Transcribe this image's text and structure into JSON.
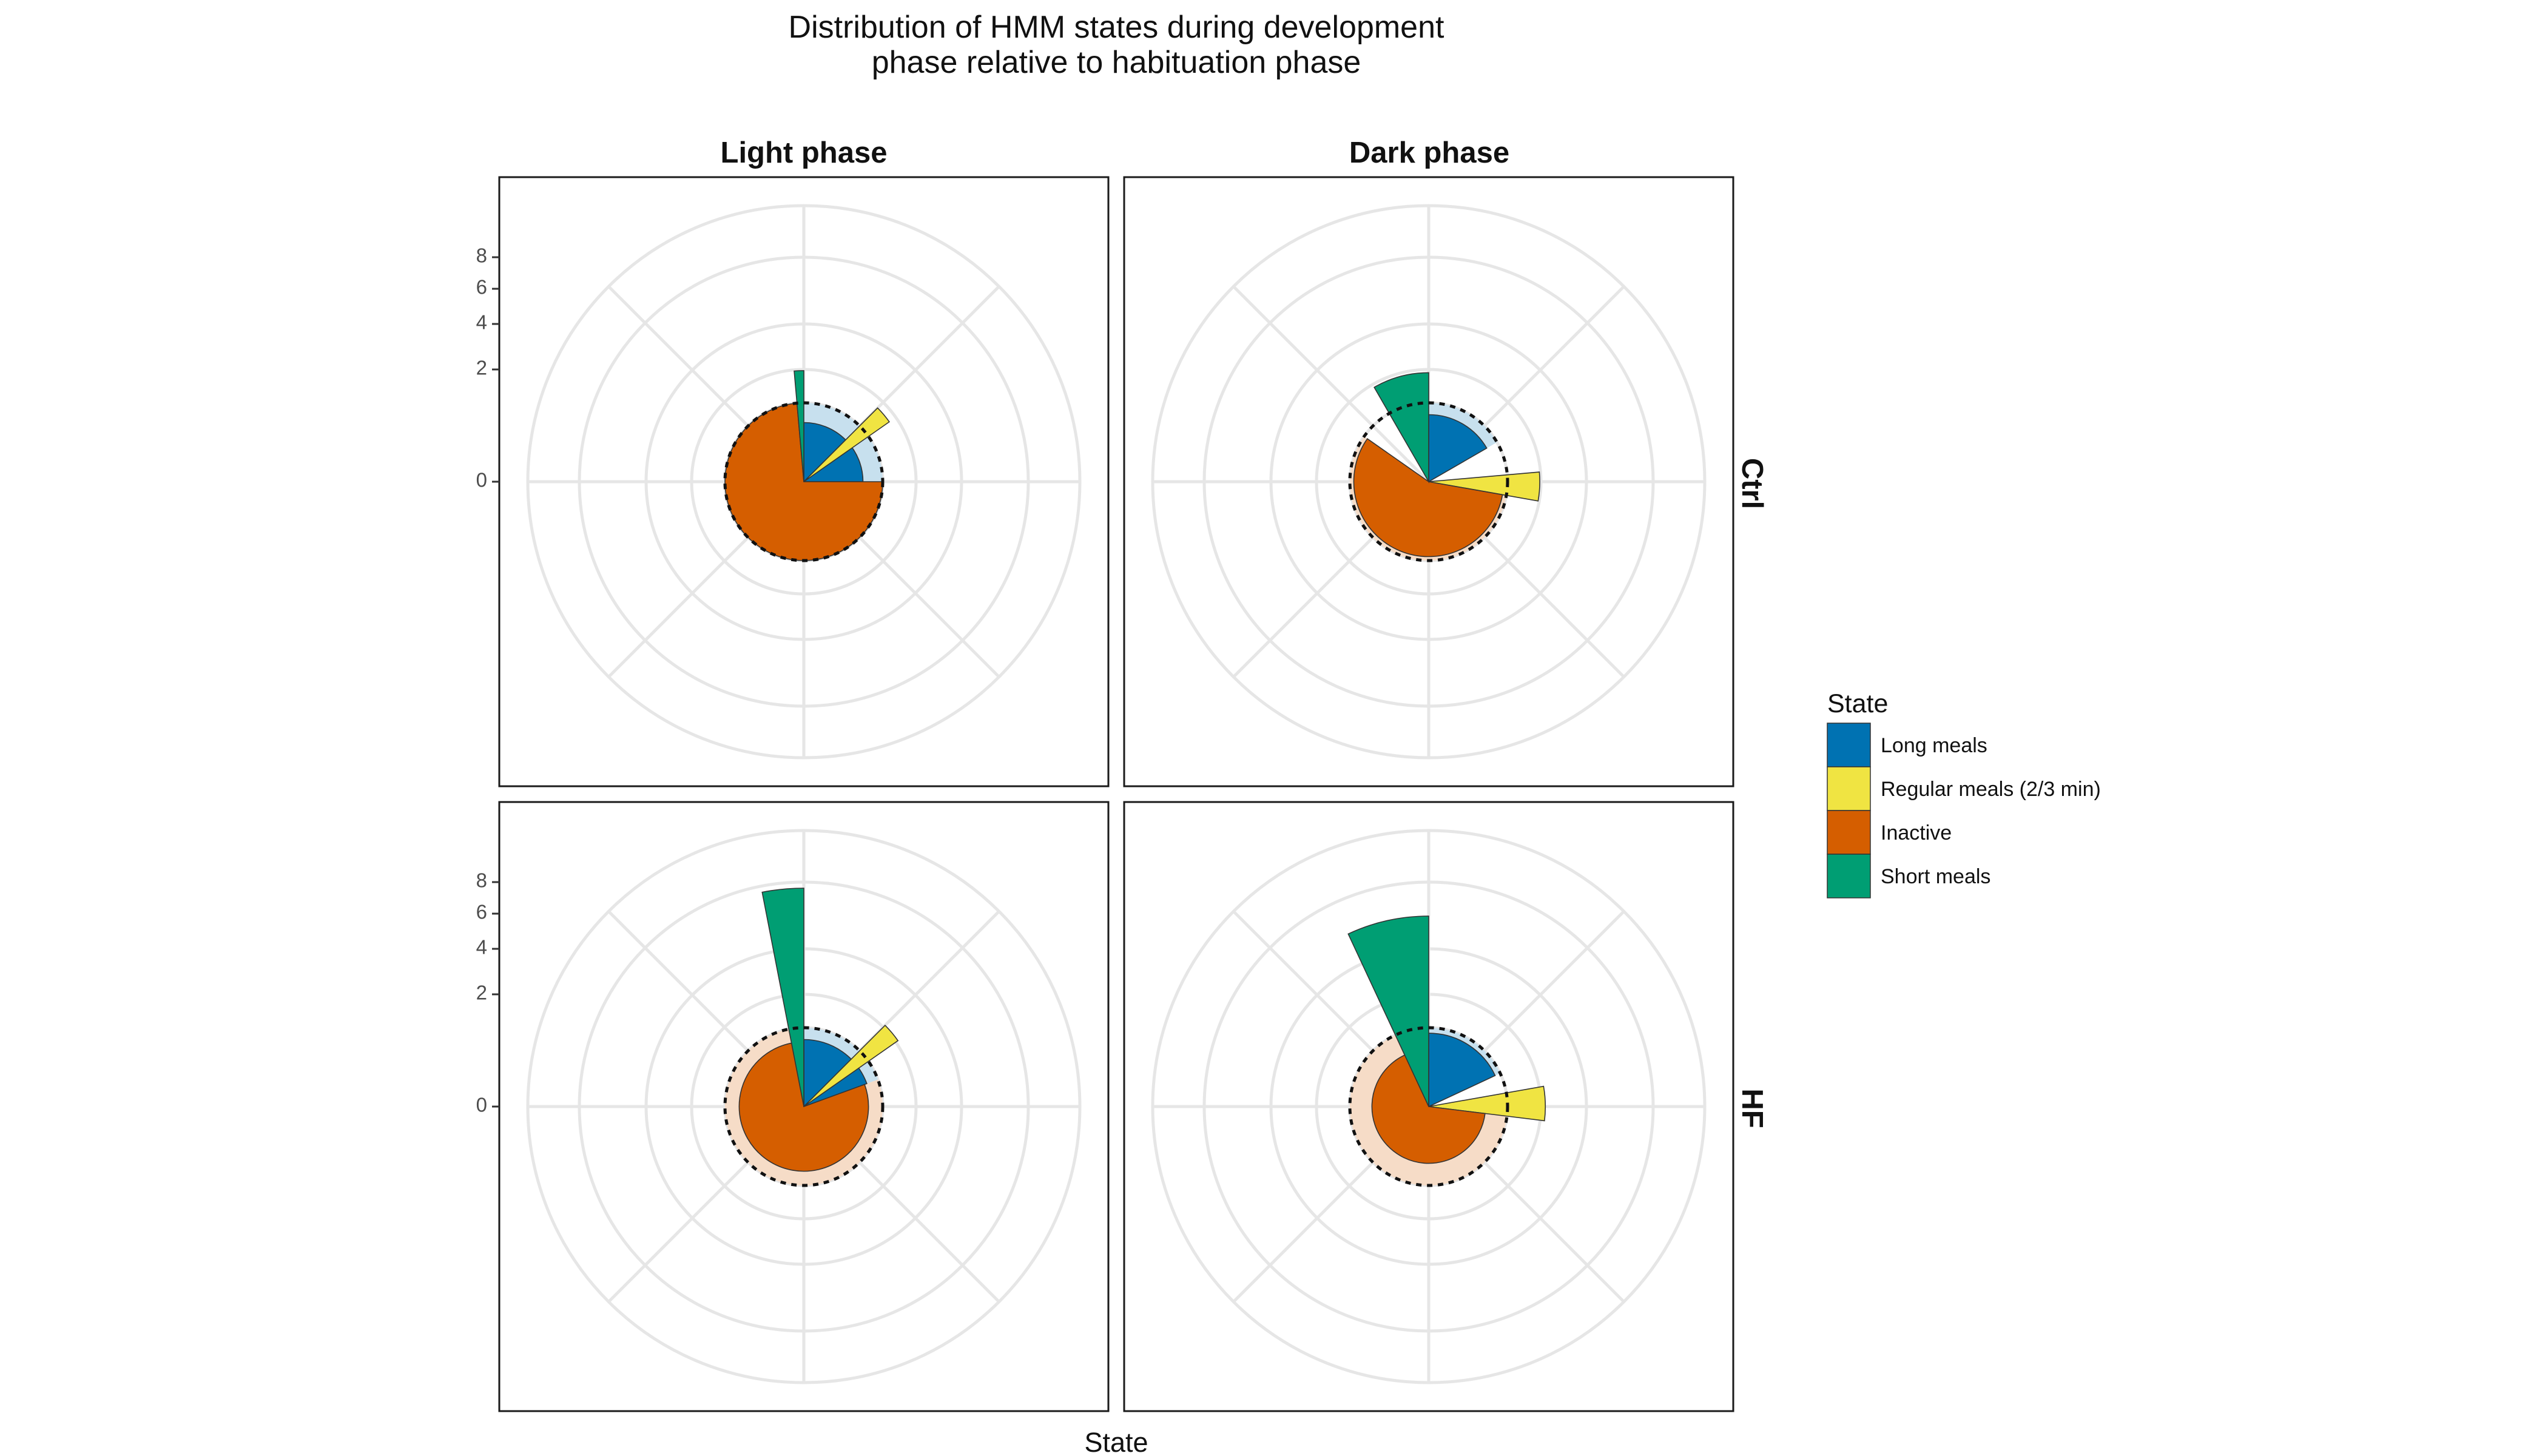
{
  "title_lines": [
    "Distribution of HMM states during development",
    "phase relative to habituation phase"
  ],
  "xlabel": "State",
  "columns": [
    "Light phase",
    "Dark phase"
  ],
  "rows": [
    "Ctrl",
    "HF"
  ],
  "legend": {
    "title": "State",
    "items": [
      {
        "label": "Long meals",
        "color": "#0072B2"
      },
      {
        "label": "Regular meals (2/3 min)",
        "color": "#F0E442"
      },
      {
        "label": "Inactive",
        "color": "#D55E00"
      },
      {
        "label": "Short meals",
        "color": "#009E73"
      }
    ]
  },
  "y_ticks": [
    "0",
    "2",
    "4",
    "6",
    "8"
  ],
  "chart_data": {
    "type": "polar-bar",
    "title": "Distribution of HMM states during development\nphase relative to habituation phase",
    "xlabel": "State",
    "facets": {
      "columns": [
        "Light phase",
        "Dark phase"
      ],
      "rows": [
        "Ctrl",
        "HF"
      ]
    },
    "y_ticks": [
      0,
      2,
      4,
      6,
      8
    ],
    "reference_ring": 1,
    "panels": [
      {
        "column": "Light phase",
        "row": "Ctrl",
        "states": [
          {
            "state": "Long meals",
            "start_deg": 0,
            "end_deg": 90,
            "value": 0.75,
            "reference": 1
          },
          {
            "state": "Regular meals (2/3 min)",
            "start_deg": 45,
            "end_deg": 55,
            "value": 1.25,
            "reference": 1
          },
          {
            "state": "Inactive",
            "start_deg": 90,
            "end_deg": 355,
            "value": 1.0,
            "reference": 1
          },
          {
            "state": "Short meals",
            "start_deg": 355,
            "end_deg": 360,
            "value": 1.4,
            "reference": 1
          }
        ]
      },
      {
        "column": "Dark phase",
        "row": "Ctrl",
        "states": [
          {
            "state": "Long meals",
            "start_deg": 0,
            "end_deg": 60,
            "value": 0.85,
            "reference": 1
          },
          {
            "state": "Regular meals (2/3 min)",
            "start_deg": 85,
            "end_deg": 100,
            "value": 1.4,
            "reference": 1
          },
          {
            "state": "Inactive",
            "start_deg": 100,
            "end_deg": 305,
            "value": 0.95,
            "reference": 1
          },
          {
            "state": "Short meals",
            "start_deg": 330,
            "end_deg": 360,
            "value": 1.35,
            "reference": 1
          }
        ]
      },
      {
        "column": "Light phase",
        "row": "HF",
        "states": [
          {
            "state": "Long meals",
            "start_deg": 0,
            "end_deg": 70,
            "value": 0.85,
            "reference": 1
          },
          {
            "state": "Regular meals (2/3 min)",
            "start_deg": 45,
            "end_deg": 55,
            "value": 1.5,
            "reference": 1
          },
          {
            "state": "Inactive",
            "start_deg": 70,
            "end_deg": 360,
            "value": 0.82,
            "reference": 1
          },
          {
            "state": "Short meals",
            "start_deg": 349,
            "end_deg": 360,
            "value": 8.5,
            "reference": 1
          }
        ]
      },
      {
        "column": "Dark phase",
        "row": "HF",
        "states": [
          {
            "state": "Long meals",
            "start_deg": 0,
            "end_deg": 65,
            "value": 0.93,
            "reference": 1
          },
          {
            "state": "Regular meals (2/3 min)",
            "start_deg": 80,
            "end_deg": 97,
            "value": 1.55,
            "reference": 1
          },
          {
            "state": "Inactive",
            "start_deg": 97,
            "end_deg": 360,
            "value": 0.72,
            "reference": 1
          },
          {
            "state": "Short meals",
            "start_deg": 335,
            "end_deg": 360,
            "value": 5.8,
            "reference": 1
          }
        ]
      }
    ]
  }
}
